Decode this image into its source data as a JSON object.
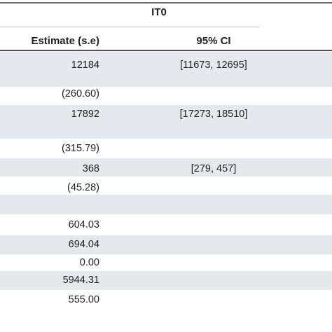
{
  "table": {
    "group_header": "IT0",
    "columns": {
      "estimate": "Estimate (s.e)",
      "ci": "95% CI"
    },
    "rows": [
      {
        "estimate": "12184",
        "ci": "[11673, 12695]",
        "shaded": true
      },
      {
        "estimate": "",
        "ci": "",
        "shaded": false
      },
      {
        "estimate": "(260.60)",
        "ci": "",
        "shaded": false
      },
      {
        "estimate": "17892",
        "ci": "[17273, 18510]",
        "shaded": true
      },
      {
        "estimate": "",
        "ci": "",
        "shaded": false
      },
      {
        "estimate": "(315.79)",
        "ci": "",
        "shaded": false
      },
      {
        "estimate": "368",
        "ci": "[279, 457]",
        "shaded": true
      },
      {
        "estimate": "(45.28)",
        "ci": "",
        "shaded": false
      },
      {
        "estimate": "",
        "ci": "",
        "shaded": true
      },
      {
        "estimate": "",
        "ci": "",
        "shaded": false
      },
      {
        "estimate": "604.03",
        "ci": "",
        "shaded": false
      },
      {
        "estimate": "694.04",
        "ci": "",
        "shaded": true
      },
      {
        "estimate": "0.00",
        "ci": "",
        "shaded": false
      },
      {
        "estimate": "5944.31",
        "ci": "",
        "shaded": true
      },
      {
        "estimate": "555.00",
        "ci": "",
        "shaded": false
      }
    ]
  }
}
